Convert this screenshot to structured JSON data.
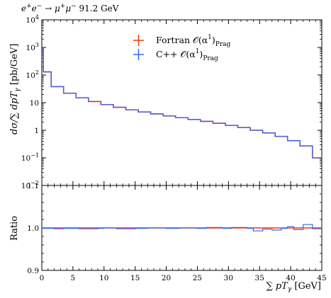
{
  "chart_data": {
    "type": "line",
    "title": "e⁺e⁻ → μ⁺μ⁻ 91.2 GeV",
    "xlabel": "∑ pTγ [GeV]",
    "xlim": [
      0,
      45
    ],
    "main_panel": {
      "ylabel": "dσ/∑ dpTγ [pb/GeV]",
      "yscale": "log",
      "ylim": [
        0.01,
        10000
      ],
      "series": [
        {
          "name": "Fortran 𝒪(α¹)Prag",
          "color": "#ff3300",
          "bin_edges": [
            0,
            0.25,
            1.5,
            3.5,
            5.5,
            7.5,
            9.5,
            11.5,
            13.5,
            15.5,
            17.5,
            19.5,
            21.5,
            23.5,
            25.5,
            27.5,
            29.5,
            31.5,
            33.5,
            35.5,
            37.5,
            39.5,
            41.5,
            43.5,
            45
          ],
          "values": [
            900,
            130,
            38,
            22,
            15,
            11,
            8.5,
            6.8,
            5.5,
            4.6,
            3.9,
            3.3,
            2.85,
            2.45,
            2.1,
            1.8,
            1.5,
            1.25,
            1.0,
            0.8,
            0.6,
            0.42,
            0.27,
            0.1
          ]
        },
        {
          "name": "C++ 𝒪(α¹)Prag",
          "color": "#3366ff",
          "bin_edges": [
            0,
            0.25,
            1.5,
            3.5,
            5.5,
            7.5,
            9.5,
            11.5,
            13.5,
            15.5,
            17.5,
            19.5,
            21.5,
            23.5,
            25.5,
            27.5,
            29.5,
            31.5,
            33.5,
            35.5,
            37.5,
            39.5,
            41.5,
            43.5,
            45
          ],
          "values": [
            900,
            130,
            38,
            22,
            15,
            11,
            8.5,
            6.8,
            5.5,
            4.6,
            3.9,
            3.3,
            2.85,
            2.45,
            2.1,
            1.78,
            1.5,
            1.25,
            1.0,
            0.8,
            0.6,
            0.42,
            0.27,
            0.1
          ]
        }
      ]
    },
    "ratio_panel": {
      "ylabel": "Ratio",
      "ylim": [
        0.9,
        1.1
      ],
      "ytick_labels": [
        "0.9",
        "1.0",
        "1.1"
      ],
      "series": [
        {
          "name": "Fortran 𝒪(α¹)Prag",
          "color": "#ff3300",
          "bin_edges": [
            0,
            45
          ],
          "values": [
            1.0
          ]
        },
        {
          "name": "C++ 𝒪(α¹)Prag",
          "color": "#3366ff",
          "bin_edges": [
            0,
            2,
            3.5,
            6,
            9,
            10,
            12,
            15,
            17,
            20,
            22,
            25,
            26.5,
            29,
            30.5,
            33,
            34,
            35.5,
            37,
            38.5,
            39.5,
            40.5,
            42,
            43.5,
            45
          ],
          "values": [
            0.999,
            0.998,
            0.999,
            0.998,
            0.999,
            1.0,
            0.998,
            0.999,
            1.0,
            0.999,
            1.0,
            0.999,
            1.001,
            0.999,
            1.001,
            0.999,
            0.993,
            0.997,
            0.995,
            0.999,
            1.003,
            0.996,
            1.008,
            0.998
          ]
        }
      ]
    },
    "xtick_labels": [
      "0",
      "5",
      "10",
      "15",
      "20",
      "25",
      "30",
      "35",
      "40",
      "45"
    ],
    "main_ytick_labels": [
      "10^-2",
      "10^-1",
      "1",
      "10",
      "10^2",
      "10^3",
      "10^4"
    ],
    "legend_placement": "top-center",
    "grid": false
  }
}
